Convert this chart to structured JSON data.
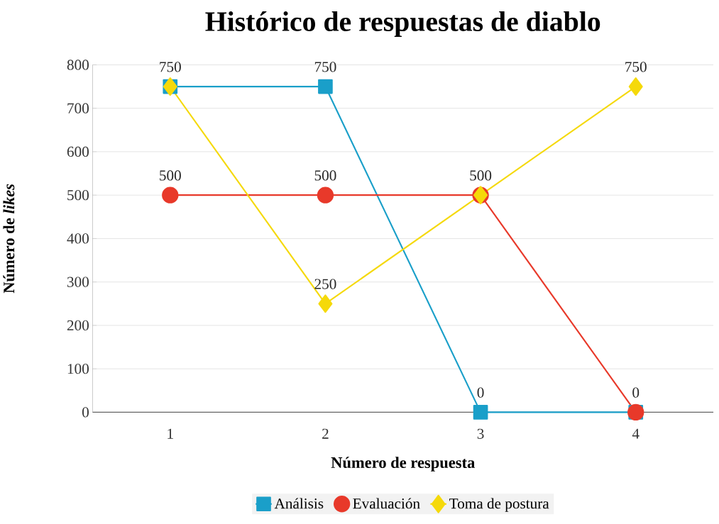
{
  "chart_data": {
    "type": "line",
    "title": "Histórico de respuestas de diablo",
    "xlabel": "Número de respuesta",
    "ylabel": "Número de *likes*",
    "categories": [
      "1",
      "2",
      "3",
      "4"
    ],
    "series": [
      {
        "name": "Análisis",
        "color": "#1a9fc9",
        "marker": "square",
        "values": [
          750,
          750,
          0,
          0
        ],
        "value_labels": [
          "750",
          "750",
          "0",
          "0"
        ]
      },
      {
        "name": "Evaluación",
        "color": "#e8392a",
        "marker": "circle",
        "values": [
          500,
          500,
          500,
          0
        ],
        "value_labels": [
          "500",
          "500",
          "500",
          null
        ]
      },
      {
        "name": "Toma de postura",
        "color": "#f5d90a",
        "marker": "diamond",
        "values": [
          750,
          250,
          500,
          750
        ],
        "value_labels": [
          null,
          "250",
          null,
          "750"
        ]
      }
    ],
    "ylim": [
      0,
      800
    ],
    "yticks": [
      0,
      100,
      200,
      300,
      400,
      500,
      600,
      700,
      800
    ],
    "grid": "y",
    "legend": "bottom",
    "line_style": "solid"
  }
}
